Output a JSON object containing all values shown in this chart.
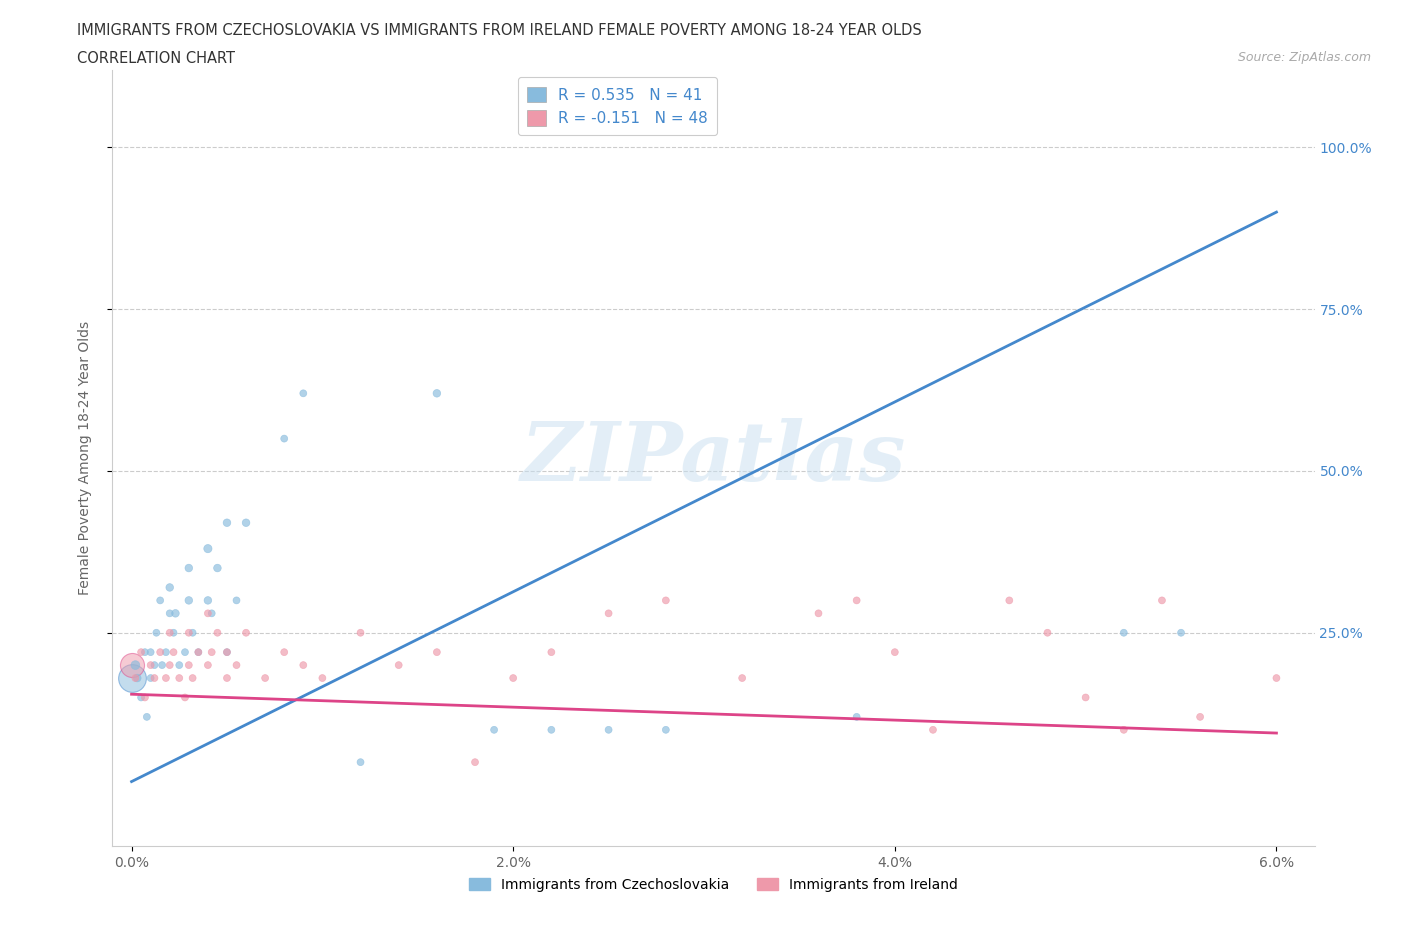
{
  "title_line1": "IMMIGRANTS FROM CZECHOSLOVAKIA VS IMMIGRANTS FROM IRELAND FEMALE POVERTY AMONG 18-24 YEAR OLDS",
  "title_line2": "CORRELATION CHART",
  "source_text": "Source: ZipAtlas.com",
  "ylabel": "Female Poverty Among 18-24 Year Olds",
  "xlim": [
    -0.001,
    0.062
  ],
  "ylim": [
    -0.08,
    1.12
  ],
  "xtick_labels": [
    "0.0%",
    "2.0%",
    "4.0%",
    "6.0%"
  ],
  "xtick_vals": [
    0.0,
    0.02,
    0.04,
    0.06
  ],
  "ytick_labels": [
    "25.0%",
    "50.0%",
    "75.0%",
    "100.0%"
  ],
  "ytick_vals": [
    0.25,
    0.5,
    0.75,
    1.0
  ],
  "legend_label1": "Immigrants from Czechoslovakia",
  "legend_label2": "Immigrants from Ireland",
  "R1": 0.535,
  "N1": 41,
  "R2": -0.151,
  "N2": 48,
  "color_blue": "#88bbdd",
  "color_blue_fill": "#aaccee",
  "color_pink": "#ee99aa",
  "color_pink_fill": "#ffbbcc",
  "color_blue_line": "#4488cc",
  "color_pink_line": "#dd4488",
  "watermark": "ZIPatlas",
  "blue_line_y0": 0.02,
  "blue_line_y1": 0.9,
  "pink_line_y0": 0.155,
  "pink_line_y1": 0.095,
  "blue_scatter_x": [
    0.0002,
    0.0003,
    0.0005,
    0.0007,
    0.0008,
    0.001,
    0.001,
    0.0012,
    0.0013,
    0.0015,
    0.0016,
    0.0018,
    0.002,
    0.002,
    0.0022,
    0.0023,
    0.0025,
    0.0028,
    0.003,
    0.003,
    0.0032,
    0.0035,
    0.004,
    0.004,
    0.0042,
    0.0045,
    0.005,
    0.005,
    0.0055,
    0.006,
    0.008,
    0.009,
    0.012,
    0.016,
    0.019,
    0.022,
    0.025,
    0.028,
    0.038,
    0.052,
    0.055
  ],
  "blue_scatter_y": [
    0.2,
    0.18,
    0.15,
    0.22,
    0.12,
    0.18,
    0.22,
    0.2,
    0.25,
    0.3,
    0.2,
    0.22,
    0.28,
    0.32,
    0.25,
    0.28,
    0.2,
    0.22,
    0.3,
    0.35,
    0.25,
    0.22,
    0.38,
    0.3,
    0.28,
    0.35,
    0.22,
    0.42,
    0.3,
    0.42,
    0.55,
    0.62,
    0.05,
    0.62,
    0.1,
    0.1,
    0.1,
    0.1,
    0.12,
    0.25,
    0.25
  ],
  "blue_scatter_size": [
    40,
    30,
    25,
    25,
    25,
    25,
    25,
    25,
    25,
    25,
    25,
    25,
    25,
    30,
    25,
    30,
    25,
    25,
    30,
    30,
    25,
    25,
    35,
    30,
    25,
    30,
    25,
    30,
    25,
    30,
    25,
    25,
    25,
    30,
    25,
    25,
    25,
    25,
    25,
    25,
    25
  ],
  "blue_large_idx": 0,
  "blue_large_size": 400,
  "pink_scatter_x": [
    0.0002,
    0.0005,
    0.0007,
    0.001,
    0.0012,
    0.0015,
    0.0018,
    0.002,
    0.002,
    0.0022,
    0.0025,
    0.0028,
    0.003,
    0.003,
    0.0032,
    0.0035,
    0.004,
    0.004,
    0.0042,
    0.0045,
    0.005,
    0.005,
    0.0055,
    0.006,
    0.007,
    0.008,
    0.009,
    0.01,
    0.012,
    0.014,
    0.016,
    0.018,
    0.02,
    0.022,
    0.025,
    0.028,
    0.032,
    0.036,
    0.038,
    0.04,
    0.042,
    0.046,
    0.048,
    0.05,
    0.052,
    0.054,
    0.056,
    0.06
  ],
  "pink_scatter_y": [
    0.18,
    0.22,
    0.15,
    0.2,
    0.18,
    0.22,
    0.18,
    0.25,
    0.2,
    0.22,
    0.18,
    0.15,
    0.2,
    0.25,
    0.18,
    0.22,
    0.2,
    0.28,
    0.22,
    0.25,
    0.18,
    0.22,
    0.2,
    0.25,
    0.18,
    0.22,
    0.2,
    0.18,
    0.25,
    0.2,
    0.22,
    0.05,
    0.18,
    0.22,
    0.28,
    0.3,
    0.18,
    0.28,
    0.3,
    0.22,
    0.1,
    0.3,
    0.25,
    0.15,
    0.1,
    0.3,
    0.12,
    0.18
  ],
  "pink_scatter_size": [
    25,
    25,
    25,
    25,
    25,
    25,
    25,
    25,
    25,
    25,
    25,
    25,
    25,
    25,
    25,
    25,
    25,
    25,
    25,
    25,
    25,
    25,
    25,
    25,
    25,
    25,
    25,
    25,
    25,
    25,
    25,
    25,
    25,
    25,
    25,
    25,
    25,
    25,
    25,
    25,
    25,
    25,
    25,
    25,
    25,
    25,
    25,
    25
  ],
  "pink_large_idx": 0,
  "pink_large_size": 300
}
